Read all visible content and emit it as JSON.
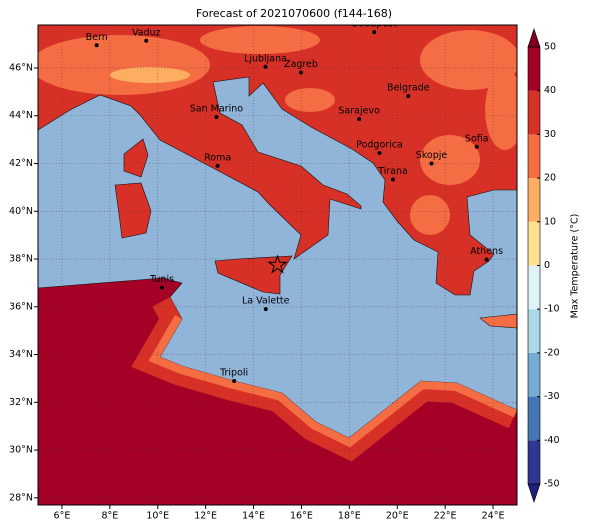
{
  "title": "Forecast of 2021070600 (f144-168)",
  "map": {
    "lon_range": [
      5,
      25
    ],
    "lat_range": [
      27.7,
      47.8
    ],
    "lon_ticks": [
      {
        "value": 6,
        "label": "6°E"
      },
      {
        "value": 8,
        "label": "8°E"
      },
      {
        "value": 10,
        "label": "10°E"
      },
      {
        "value": 12,
        "label": "12°E"
      },
      {
        "value": 14,
        "label": "14°E"
      },
      {
        "value": 16,
        "label": "16°E"
      },
      {
        "value": 18,
        "label": "18°E"
      },
      {
        "value": 20,
        "label": "20°E"
      },
      {
        "value": 22,
        "label": "22°E"
      },
      {
        "value": 24,
        "label": "24°E"
      }
    ],
    "lat_ticks": [
      {
        "value": 28,
        "label": "28°N"
      },
      {
        "value": 30,
        "label": "30°N"
      },
      {
        "value": 32,
        "label": "32°N"
      },
      {
        "value": 34,
        "label": "34°N"
      },
      {
        "value": 36,
        "label": "36°N"
      },
      {
        "value": 38,
        "label": "38°N"
      },
      {
        "value": 40,
        "label": "40°N"
      },
      {
        "value": 42,
        "label": "42°N"
      },
      {
        "value": 44,
        "label": "44°N"
      },
      {
        "value": 46,
        "label": "46°N"
      }
    ],
    "grid": true,
    "sea_color": "#91b4d9"
  },
  "cities": [
    {
      "name": "Bern",
      "lon": 7.45,
      "lat": 46.95
    },
    {
      "name": "Vaduz",
      "lon": 9.52,
      "lat": 47.14
    },
    {
      "name": "Budapest",
      "lon": 19.04,
      "lat": 47.5
    },
    {
      "name": "Ljubljana",
      "lon": 14.5,
      "lat": 46.05
    },
    {
      "name": "Zagreb",
      "lon": 15.98,
      "lat": 45.81
    },
    {
      "name": "Belgrade",
      "lon": 20.46,
      "lat": 44.82
    },
    {
      "name": "San Marino",
      "lon": 12.45,
      "lat": 43.94
    },
    {
      "name": "Sarajevo",
      "lon": 18.41,
      "lat": 43.86
    },
    {
      "name": "Sofia",
      "lon": 23.32,
      "lat": 42.7
    },
    {
      "name": "Podgorica",
      "lon": 19.26,
      "lat": 42.44
    },
    {
      "name": "Skopje",
      "lon": 21.43,
      "lat": 42.0
    },
    {
      "name": "Roma",
      "lon": 12.5,
      "lat": 41.9
    },
    {
      "name": "Tirana",
      "lon": 19.82,
      "lat": 41.33
    },
    {
      "name": "Athens",
      "lon": 23.73,
      "lat": 37.98
    },
    {
      "name": "Tunis",
      "lon": 10.18,
      "lat": 36.8
    },
    {
      "name": "La Valette",
      "lon": 14.51,
      "lat": 35.9
    },
    {
      "name": "Tripoli",
      "lon": 13.19,
      "lat": 32.89
    }
  ],
  "marker": {
    "lon": 15.0,
    "lat": 37.75
  },
  "colorbar": {
    "label": "Max Temperature (°C)",
    "ticks": [
      -50,
      -40,
      -30,
      -20,
      -10,
      0,
      10,
      20,
      30,
      40,
      50
    ],
    "colors": [
      "#313695",
      "#4575b4",
      "#74add1",
      "#abd9e9",
      "#e0f3f8",
      "#fee090",
      "#fdae61",
      "#f46d43",
      "#d73027",
      "#a50026"
    ],
    "under_color": "#1f1f80",
    "over_color": "#800020"
  }
}
